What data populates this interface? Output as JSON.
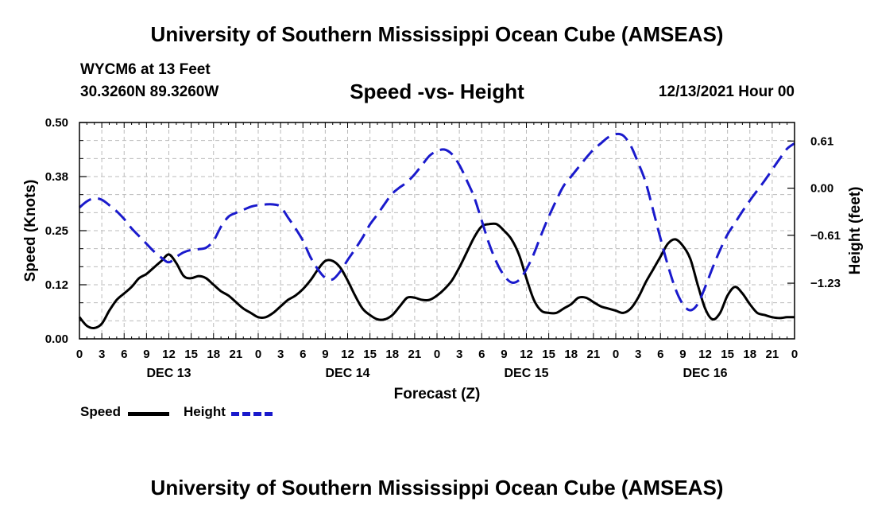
{
  "header": {
    "title": "University of Southern Mississippi Ocean Cube (AMSEAS)",
    "station": "WYCM6 at 13 Feet",
    "latlon": "30.3260N  89.3260W",
    "subtitle": "Speed -vs- Height",
    "datetime": "12/13/2021 Hour 00"
  },
  "footer": {
    "title": "University of Southern Mississippi Ocean Cube (AMSEAS)"
  },
  "legend": {
    "speed_label": "Speed",
    "height_label": "Height"
  },
  "colors": {
    "speed": "#000000",
    "height": "#1a1acc",
    "grid": "#bbbbbb"
  },
  "chart_data": {
    "type": "line",
    "title": "Speed -vs- Height",
    "xlabel": "Forecast (Z)",
    "ylabel": "Speed (Knots)",
    "ylabel_right": "Height (feet)",
    "x_unit": "forecast hour",
    "xlim": [
      0,
      96
    ],
    "ylim": [
      0,
      0.5
    ],
    "ylim_right": [
      -1.95,
      0.85
    ],
    "x_ticks": [
      {
        "x": 0,
        "label": "0"
      },
      {
        "x": 3,
        "label": "3"
      },
      {
        "x": 6,
        "label": "6"
      },
      {
        "x": 9,
        "label": "9"
      },
      {
        "x": 12,
        "label": "12"
      },
      {
        "x": 15,
        "label": "15"
      },
      {
        "x": 18,
        "label": "18"
      },
      {
        "x": 21,
        "label": "21"
      },
      {
        "x": 24,
        "label": "0"
      },
      {
        "x": 27,
        "label": "3"
      },
      {
        "x": 30,
        "label": "6"
      },
      {
        "x": 33,
        "label": "9"
      },
      {
        "x": 36,
        "label": "12"
      },
      {
        "x": 39,
        "label": "15"
      },
      {
        "x": 42,
        "label": "18"
      },
      {
        "x": 45,
        "label": "21"
      },
      {
        "x": 48,
        "label": "0"
      },
      {
        "x": 51,
        "label": "3"
      },
      {
        "x": 54,
        "label": "6"
      },
      {
        "x": 57,
        "label": "9"
      },
      {
        "x": 60,
        "label": "12"
      },
      {
        "x": 63,
        "label": "15"
      },
      {
        "x": 66,
        "label": "18"
      },
      {
        "x": 69,
        "label": "21"
      },
      {
        "x": 72,
        "label": "0"
      },
      {
        "x": 75,
        "label": "3"
      },
      {
        "x": 78,
        "label": "6"
      },
      {
        "x": 81,
        "label": "9"
      },
      {
        "x": 84,
        "label": "12"
      },
      {
        "x": 87,
        "label": "15"
      },
      {
        "x": 90,
        "label": "18"
      },
      {
        "x": 93,
        "label": "21"
      },
      {
        "x": 96,
        "label": "0"
      }
    ],
    "day_labels": [
      {
        "x": 12,
        "label": "DEC 13"
      },
      {
        "x": 36,
        "label": "DEC 14"
      },
      {
        "x": 60,
        "label": "DEC 15"
      },
      {
        "x": 84,
        "label": "DEC 16"
      }
    ],
    "y_ticks": [
      {
        "v": 0.0,
        "label": "0.00"
      },
      {
        "v": 0.125,
        "label": "0.12"
      },
      {
        "v": 0.25,
        "label": "0.25"
      },
      {
        "v": 0.375,
        "label": "0.38"
      },
      {
        "v": 0.5,
        "label": "0.50"
      }
    ],
    "y_ticks_right": [
      {
        "v": 0.61,
        "label": "0.61"
      },
      {
        "v": 0.0,
        "label": "0.00"
      },
      {
        "v": -0.61,
        "label": "−0.61"
      },
      {
        "v": -1.23,
        "label": "−1.23"
      }
    ],
    "series": [
      {
        "name": "Speed",
        "axis": "left",
        "style": "solid",
        "x": [
          0,
          1,
          2,
          3,
          4,
          5,
          6,
          7,
          8,
          9,
          10,
          11,
          12,
          13,
          14,
          15,
          16,
          17,
          18,
          19,
          20,
          21,
          22,
          23,
          24,
          25,
          26,
          27,
          28,
          29,
          30,
          31,
          32,
          33,
          34,
          35,
          36,
          37,
          38,
          39,
          40,
          41,
          42,
          43,
          44,
          45,
          46,
          47,
          48,
          49,
          50,
          51,
          52,
          53,
          54,
          55,
          56,
          57,
          58,
          59,
          60,
          61,
          62,
          63,
          64,
          65,
          66,
          67,
          68,
          69,
          70,
          71,
          72,
          73,
          74,
          75,
          76,
          77,
          78,
          79,
          80,
          81,
          82,
          83,
          84,
          85,
          86,
          87,
          88,
          89,
          90,
          91,
          92,
          93,
          94,
          95,
          96
        ],
        "values": [
          0.05,
          0.03,
          0.025,
          0.035,
          0.065,
          0.09,
          0.105,
          0.12,
          0.14,
          0.15,
          0.165,
          0.18,
          0.195,
          0.175,
          0.145,
          0.14,
          0.145,
          0.14,
          0.125,
          0.11,
          0.1,
          0.085,
          0.07,
          0.06,
          0.05,
          0.05,
          0.06,
          0.075,
          0.09,
          0.1,
          0.115,
          0.135,
          0.16,
          0.18,
          0.18,
          0.165,
          0.135,
          0.1,
          0.07,
          0.055,
          0.045,
          0.045,
          0.055,
          0.075,
          0.095,
          0.095,
          0.09,
          0.09,
          0.1,
          0.115,
          0.135,
          0.165,
          0.2,
          0.235,
          0.26,
          0.265,
          0.265,
          0.25,
          0.23,
          0.195,
          0.14,
          0.09,
          0.065,
          0.06,
          0.06,
          0.07,
          0.08,
          0.095,
          0.095,
          0.085,
          0.075,
          0.07,
          0.065,
          0.06,
          0.07,
          0.095,
          0.13,
          0.16,
          0.19,
          0.22,
          0.23,
          0.215,
          0.185,
          0.125,
          0.07,
          0.045,
          0.06,
          0.1,
          0.12,
          0.105,
          0.08,
          0.06,
          0.055,
          0.05,
          0.048,
          0.05,
          0.05
        ]
      },
      {
        "name": "Height",
        "axis": "right",
        "style": "dashed",
        "x": [
          0,
          1,
          2,
          3,
          4,
          5,
          6,
          7,
          8,
          9,
          10,
          11,
          12,
          13,
          14,
          15,
          16,
          17,
          18,
          19,
          20,
          21,
          22,
          23,
          24,
          25,
          26,
          27,
          28,
          29,
          30,
          31,
          32,
          33,
          34,
          35,
          36,
          37,
          38,
          39,
          40,
          41,
          42,
          43,
          44,
          45,
          46,
          47,
          48,
          49,
          50,
          51,
          52,
          53,
          54,
          55,
          56,
          57,
          58,
          59,
          60,
          61,
          62,
          63,
          64,
          65,
          66,
          67,
          68,
          69,
          70,
          71,
          72,
          73,
          74,
          75,
          76,
          77,
          78,
          79,
          80,
          81,
          82,
          83,
          84,
          85,
          86,
          87,
          88,
          89,
          90,
          91,
          92,
          93,
          94,
          95,
          96
        ],
        "values": [
          -0.25,
          -0.17,
          -0.13,
          -0.15,
          -0.22,
          -0.3,
          -0.4,
          -0.52,
          -0.62,
          -0.72,
          -0.82,
          -0.9,
          -0.96,
          -0.89,
          -0.83,
          -0.8,
          -0.79,
          -0.77,
          -0.68,
          -0.5,
          -0.37,
          -0.32,
          -0.28,
          -0.24,
          -0.22,
          -0.21,
          -0.21,
          -0.24,
          -0.38,
          -0.52,
          -0.68,
          -0.89,
          -1.05,
          -1.16,
          -1.18,
          -1.08,
          -0.93,
          -0.79,
          -0.64,
          -0.47,
          -0.34,
          -0.2,
          -0.07,
          0.01,
          0.08,
          0.18,
          0.3,
          0.42,
          0.48,
          0.5,
          0.44,
          0.3,
          0.1,
          -0.12,
          -0.42,
          -0.72,
          -0.96,
          -1.13,
          -1.22,
          -1.19,
          -1.05,
          -0.85,
          -0.6,
          -0.37,
          -0.16,
          0.03,
          0.15,
          0.27,
          0.39,
          0.5,
          0.58,
          0.66,
          0.7,
          0.68,
          0.55,
          0.33,
          0.08,
          -0.28,
          -0.65,
          -1.0,
          -1.3,
          -1.5,
          -1.58,
          -1.5,
          -1.28,
          -1.03,
          -0.8,
          -0.6,
          -0.45,
          -0.3,
          -0.16,
          -0.03,
          0.1,
          0.24,
          0.38,
          0.51,
          0.58
        ]
      }
    ]
  }
}
